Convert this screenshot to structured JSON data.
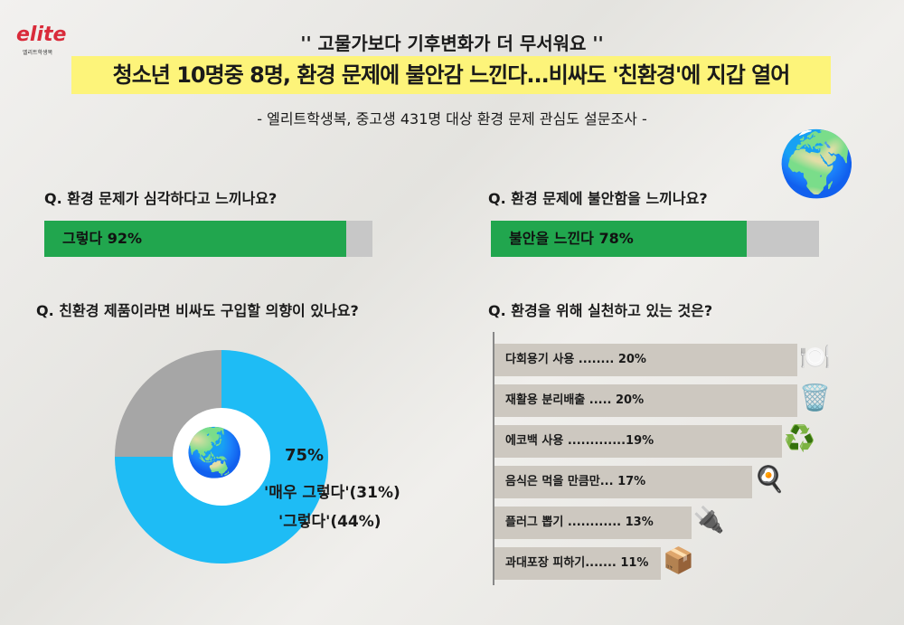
{
  "logo": {
    "text": "elite",
    "sub": "엘리트학생복"
  },
  "quote": "'' 고물가보다 기후변화가 더 무서워요 ''",
  "headline": "청소년 10명중 8명, 환경 문제에 불안감 느낀다...비싸도 '친환경'에 지갑 열어",
  "subtitle": "- 엘리트학생복, 중고생 431명 대상 환경 문제 관심도 설문조사 -",
  "colors": {
    "green": "#21a64e",
    "blue": "#1ebcf5",
    "grey": "#a6a6a6",
    "yellow": "#fdf47a",
    "bar": "#cdc8c0"
  },
  "chart_data": [
    {
      "type": "bar",
      "title": "Q. 환경 문제가 심각하다고 느끼나요?",
      "categories": [
        "그렇다"
      ],
      "values": [
        92
      ],
      "label": "그렇다 92%",
      "ylim": [
        0,
        100
      ]
    },
    {
      "type": "bar",
      "title": "Q. 환경 문제에 불안함을 느끼나요?",
      "categories": [
        "불안을 느낀다"
      ],
      "values": [
        78
      ],
      "label": "불안을 느낀다 78%",
      "ylim": [
        0,
        100
      ]
    },
    {
      "type": "pie",
      "title": "Q. 친환경 제품이라면 비싸도 구입할 의향이 있나요?",
      "total_label": "75%",
      "slices": [
        {
          "label": "'매우 그렇다'(31%)",
          "value": 31
        },
        {
          "label": "'그렇다'(44%)",
          "value": 44
        },
        {
          "value": 25
        }
      ]
    },
    {
      "type": "bar",
      "title": "Q. 환경을 위해 실천하고 있는 것은?",
      "categories": [
        "다회용기 사용",
        "재활용 분리배출",
        "에코백 사용",
        "음식은 먹을 만큼만",
        "플러그 뽑기",
        "과대포장 피하기"
      ],
      "values": [
        20,
        20,
        19,
        17,
        13,
        11
      ],
      "labels": [
        "다회용기 사용 ........ 20%",
        "재활용 분리배출 ..... 20%",
        "에코백 사용 .............19%",
        "음식은 먹을 만큼만... 17%",
        "플러그 뽑기 ............ 13%",
        "과대포장 피하기....... 11%"
      ],
      "icons": [
        "dish-icon",
        "recycle-bin-icon",
        "eco-bag-icon",
        "plate-food-icon",
        "plug-icon",
        "box-icon"
      ]
    }
  ]
}
